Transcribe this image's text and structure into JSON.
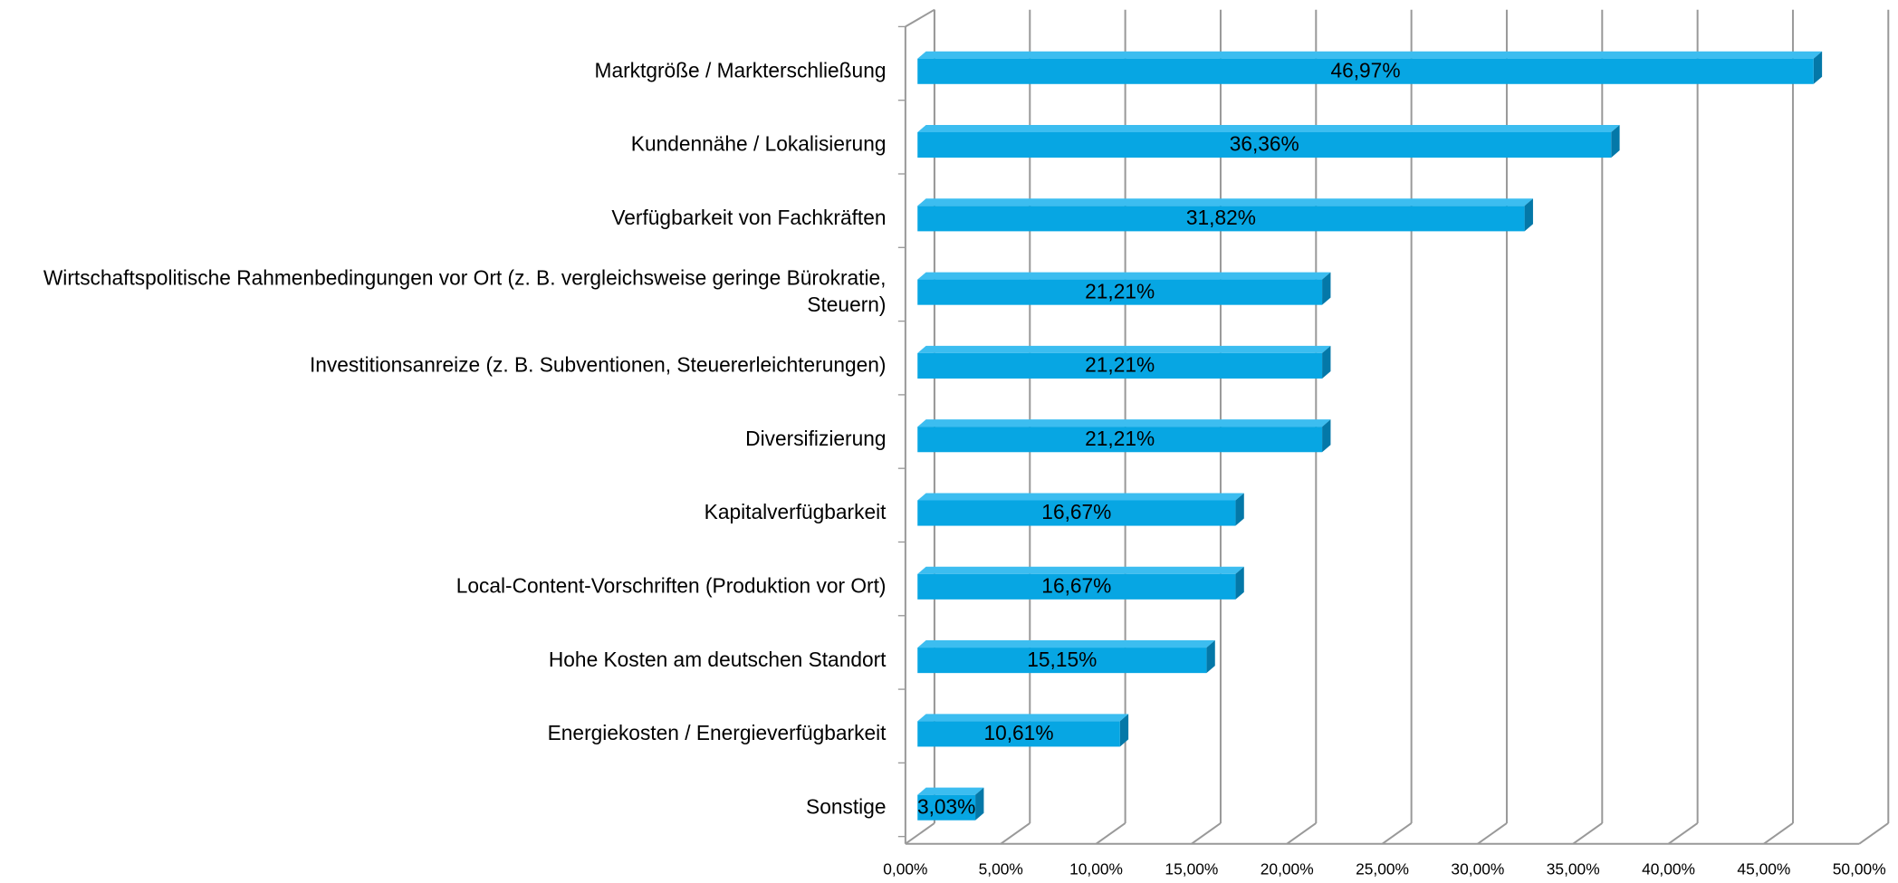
{
  "chart_data": {
    "type": "bar",
    "orientation": "horizontal",
    "categories": [
      "Marktgröße / Markterschließung",
      "Kundennähe / Lokalisierung",
      "Verfügbarkeit von Fachkräften",
      "Wirtschaftspolitische Rahmenbedingungen vor Ort (z. B. vergleichsweise geringe Bürokratie, Steuern)",
      "Investitionsanreize (z. B. Subventionen, Steuererleichterungen)",
      "Diversifizierung",
      "Kapitalverfügbarkeit",
      "Local-Content-Vorschriften (Produktion vor Ort)",
      "Hohe Kosten am deutschen Standort",
      "Energiekosten / Energieverfügbarkeit",
      "Sonstige"
    ],
    "values": [
      46.97,
      36.36,
      31.82,
      21.21,
      21.21,
      21.21,
      16.67,
      16.67,
      15.15,
      10.61,
      3.03
    ],
    "value_labels": [
      "46,97%",
      "36,36%",
      "31,82%",
      "21,21%",
      "21,21%",
      "21,21%",
      "16,67%",
      "16,67%",
      "15,15%",
      "10,61%",
      "3,03%"
    ],
    "color": "#07a6e3",
    "xlim": [
      0,
      50
    ],
    "xticks": [
      {
        "value": 0,
        "label": "0,00%"
      },
      {
        "value": 5,
        "label": "5,00%"
      },
      {
        "value": 10,
        "label": "10,00%"
      },
      {
        "value": 15,
        "label": "15,00%"
      },
      {
        "value": 20,
        "label": "20,00%"
      },
      {
        "value": 25,
        "label": "25,00%"
      },
      {
        "value": 30,
        "label": "30,00%"
      },
      {
        "value": 35,
        "label": "35,00%"
      },
      {
        "value": 40,
        "label": "40,00%"
      },
      {
        "value": 45,
        "label": "45,00%"
      },
      {
        "value": 50,
        "label": "50,00%"
      }
    ],
    "grid": true
  }
}
